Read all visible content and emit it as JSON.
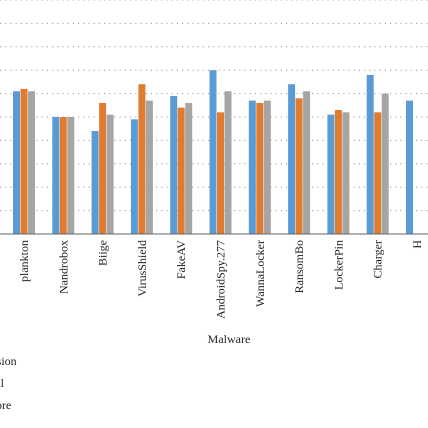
{
  "chart_data": {
    "type": "bar",
    "xlabel": "Malware",
    "ylim": [
      0,
      1.0
    ],
    "grid": true,
    "legend_position": "bottom-left",
    "categories": [
      "plankton",
      "Nandrobox",
      "Biige",
      "VirusShield",
      "FakeAV",
      "AndroidSpy.277",
      "WannaLocker",
      "RansomBo",
      "LockerPin",
      "Charger",
      "H"
    ],
    "series": [
      {
        "name": "cision",
        "color": "#5B9BD5",
        "values": [
          0.61,
          0.5,
          0.44,
          0.49,
          0.59,
          0.7,
          0.57,
          0.64,
          0.51,
          0.68,
          0.57
        ]
      },
      {
        "name": "all",
        "color": "#E07B30",
        "values": [
          0.62,
          0.5,
          0.56,
          0.64,
          0.54,
          0.52,
          0.56,
          0.58,
          0.53,
          0.52,
          null
        ]
      },
      {
        "name": "score",
        "color": "#A5A5A5",
        "values": [
          0.61,
          0.5,
          0.51,
          0.57,
          0.56,
          0.61,
          0.57,
          0.61,
          0.52,
          0.6,
          null
        ]
      }
    ]
  }
}
